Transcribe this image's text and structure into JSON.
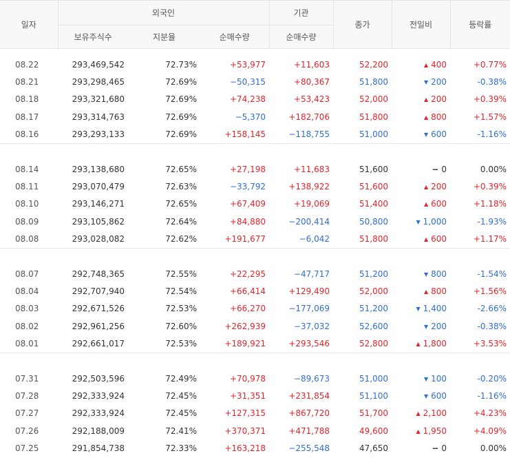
{
  "header": {
    "date": "일자",
    "foreign": "외국인",
    "institution": "기관",
    "close": "종가",
    "diff": "전일비",
    "rate": "등락률",
    "holdings": "보유주식수",
    "ratio": "지분율",
    "f_net": "순매수량",
    "i_net": "순매수량"
  },
  "groups": [
    [
      {
        "date": "08.22",
        "holdings": "293,469,542",
        "ratio": "72.73%",
        "f_net": "+53,977",
        "i_net": "+11,603",
        "close": "52,200",
        "dir": "up",
        "diff": "400",
        "rate": "+0.77%"
      },
      {
        "date": "08.21",
        "holdings": "293,298,465",
        "ratio": "72.69%",
        "f_net": "−50,315",
        "i_net": "+80,367",
        "close": "51,800",
        "dir": "down",
        "diff": "200",
        "rate": "-0.38%"
      },
      {
        "date": "08.18",
        "holdings": "293,321,680",
        "ratio": "72.69%",
        "f_net": "+74,238",
        "i_net": "+53,423",
        "close": "52,000",
        "dir": "up",
        "diff": "200",
        "rate": "+0.39%"
      },
      {
        "date": "08.17",
        "holdings": "293,314,763",
        "ratio": "72.69%",
        "f_net": "−5,370",
        "i_net": "+182,706",
        "close": "51,800",
        "dir": "up",
        "diff": "800",
        "rate": "+1.57%"
      },
      {
        "date": "08.16",
        "holdings": "293,293,133",
        "ratio": "72.69%",
        "f_net": "+158,145",
        "i_net": "−118,755",
        "close": "51,000",
        "dir": "down",
        "diff": "600",
        "rate": "-1.16%"
      }
    ],
    [
      {
        "date": "08.14",
        "holdings": "293,138,680",
        "ratio": "72.65%",
        "f_net": "+27,198",
        "i_net": "+11,683",
        "close": "51,600",
        "dir": "flat",
        "diff": "0",
        "rate": "0.00%"
      },
      {
        "date": "08.11",
        "holdings": "293,070,479",
        "ratio": "72.63%",
        "f_net": "−33,792",
        "i_net": "+138,922",
        "close": "51,600",
        "dir": "up",
        "diff": "200",
        "rate": "+0.39%"
      },
      {
        "date": "08.10",
        "holdings": "293,146,271",
        "ratio": "72.65%",
        "f_net": "+67,409",
        "i_net": "+19,069",
        "close": "51,400",
        "dir": "up",
        "diff": "600",
        "rate": "+1.18%"
      },
      {
        "date": "08.09",
        "holdings": "293,105,862",
        "ratio": "72.64%",
        "f_net": "+84,880",
        "i_net": "−200,414",
        "close": "50,800",
        "dir": "down",
        "diff": "1,000",
        "rate": "-1.93%"
      },
      {
        "date": "08.08",
        "holdings": "293,028,082",
        "ratio": "72.62%",
        "f_net": "+191,677",
        "i_net": "−6,042",
        "close": "51,800",
        "dir": "up",
        "diff": "600",
        "rate": "+1.17%"
      }
    ],
    [
      {
        "date": "08.07",
        "holdings": "292,748,365",
        "ratio": "72.55%",
        "f_net": "+22,295",
        "i_net": "−47,717",
        "close": "51,200",
        "dir": "down",
        "diff": "800",
        "rate": "-1.54%"
      },
      {
        "date": "08.04",
        "holdings": "292,707,940",
        "ratio": "72.54%",
        "f_net": "+66,414",
        "i_net": "+129,490",
        "close": "52,000",
        "dir": "up",
        "diff": "800",
        "rate": "+1.56%"
      },
      {
        "date": "08.03",
        "holdings": "292,671,526",
        "ratio": "72.53%",
        "f_net": "+66,270",
        "i_net": "−177,069",
        "close": "51,200",
        "dir": "down",
        "diff": "1,400",
        "rate": "-2.66%"
      },
      {
        "date": "08.02",
        "holdings": "292,961,256",
        "ratio": "72.60%",
        "f_net": "+262,939",
        "i_net": "−37,032",
        "close": "52,600",
        "dir": "down",
        "diff": "200",
        "rate": "-0.38%"
      },
      {
        "date": "08.01",
        "holdings": "292,661,017",
        "ratio": "72.53%",
        "f_net": "+189,921",
        "i_net": "+293,546",
        "close": "52,800",
        "dir": "up",
        "diff": "1,800",
        "rate": "+3.53%"
      }
    ],
    [
      {
        "date": "07.31",
        "holdings": "292,503,596",
        "ratio": "72.49%",
        "f_net": "+70,978",
        "i_net": "−89,673",
        "close": "51,000",
        "dir": "down",
        "diff": "100",
        "rate": "-0.20%"
      },
      {
        "date": "07.28",
        "holdings": "292,333,924",
        "ratio": "72.45%",
        "f_net": "+31,351",
        "i_net": "+231,854",
        "close": "51,100",
        "dir": "down",
        "diff": "600",
        "rate": "-1.16%"
      },
      {
        "date": "07.27",
        "holdings": "292,333,924",
        "ratio": "72.45%",
        "f_net": "+127,315",
        "i_net": "+867,720",
        "close": "51,700",
        "dir": "up",
        "diff": "2,100",
        "rate": "+4.23%"
      },
      {
        "date": "07.26",
        "holdings": "292,188,009",
        "ratio": "72.41%",
        "f_net": "+370,371",
        "i_net": "+471,788",
        "close": "49,600",
        "dir": "up",
        "diff": "1,950",
        "rate": "+4.09%"
      },
      {
        "date": "07.25",
        "holdings": "291,854,738",
        "ratio": "72.33%",
        "f_net": "+163,218",
        "i_net": "−255,548",
        "close": "47,650",
        "dir": "flat",
        "diff": "0",
        "rate": "0.00%"
      }
    ]
  ],
  "colors": {
    "up": "#e4242b",
    "down": "#2f6fd1",
    "neutral": "#333333"
  }
}
